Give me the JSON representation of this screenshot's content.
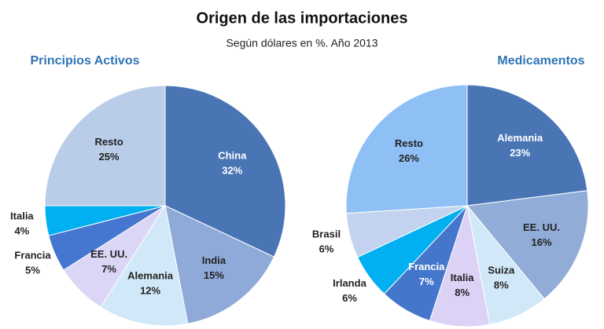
{
  "title": "Origen de las importaciones",
  "subtitle": "Según dólares en %. Año 2013",
  "chart_data": [
    {
      "type": "pie",
      "title": "Principios Activos",
      "categories": [
        "China",
        "India",
        "Alemania",
        "EE. UU.",
        "Francia",
        "Italia",
        "Resto"
      ],
      "values": [
        32,
        15,
        12,
        7,
        5,
        4,
        25
      ],
      "value_labels": [
        "32%",
        "15%",
        "12%",
        "7%",
        "5%",
        "4%",
        "25%"
      ],
      "colors": [
        "#4a75b5",
        "#8faad8",
        "#d0e8f7",
        "#dcd6f6",
        "#4577d0",
        "#00b0f0",
        "#b9cce8"
      ]
    },
    {
      "type": "pie",
      "title": "Medicamentos",
      "categories": [
        "Alemania",
        "EE. UU.",
        "Suiza",
        "Italia",
        "Francia",
        "Irlanda",
        "Brasil",
        "Resto"
      ],
      "values": [
        23,
        16,
        8,
        8,
        7,
        6,
        6,
        26
      ],
      "value_labels": [
        "23%",
        "16%",
        "8%",
        "8%",
        "7%",
        "6%",
        "6%",
        "26%"
      ],
      "colors": [
        "#4a75b5",
        "#92acd8",
        "#d0e8f7",
        "#dcd2f6",
        "#4477cc",
        "#00b0f0",
        "#c3d2ee",
        "#8fc0f5"
      ]
    }
  ]
}
